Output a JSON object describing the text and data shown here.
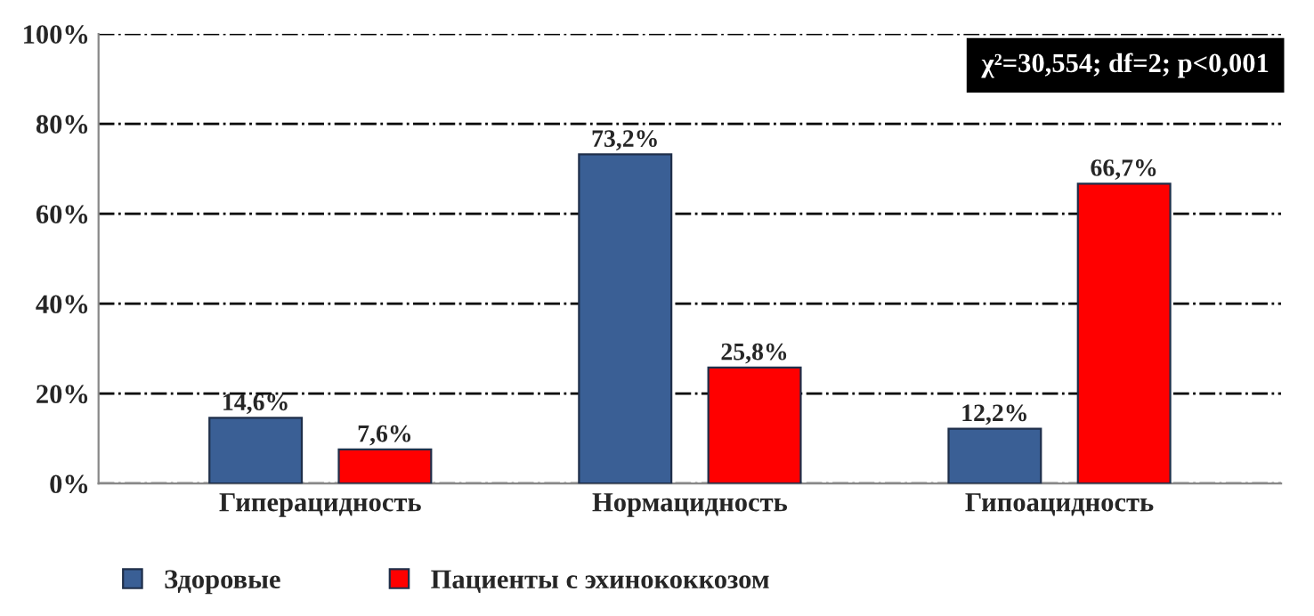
{
  "chart_data": {
    "type": "bar",
    "categories": [
      "Гиперацидность",
      "Нормацидность",
      "Гипоацидность"
    ],
    "series": [
      {
        "name": "Здоровые",
        "color": "#3a5f95",
        "values": [
          14.6,
          73.2,
          12.2
        ],
        "value_labels": [
          "14,6%",
          "73,2%",
          "12,2%"
        ]
      },
      {
        "name": "Пациенты с эхинококкозом",
        "color": "#ff0000",
        "values": [
          7.6,
          25.8,
          66.7
        ],
        "value_labels": [
          "7,6%",
          "25,8%",
          "66,7%"
        ]
      }
    ],
    "ylim": [
      0,
      100
    ],
    "yticks": [
      {
        "value": 0,
        "label": "0%"
      },
      {
        "value": 20,
        "label": "20%"
      },
      {
        "value": 40,
        "label": "40%"
      },
      {
        "value": 60,
        "label": "60%"
      },
      {
        "value": 80,
        "label": "80%"
      },
      {
        "value": 100,
        "label": "100%"
      }
    ],
    "grid": "y",
    "legend": "bottom left",
    "annotations": [
      "χ²=30,554; df=2; p<0,001"
    ]
  }
}
